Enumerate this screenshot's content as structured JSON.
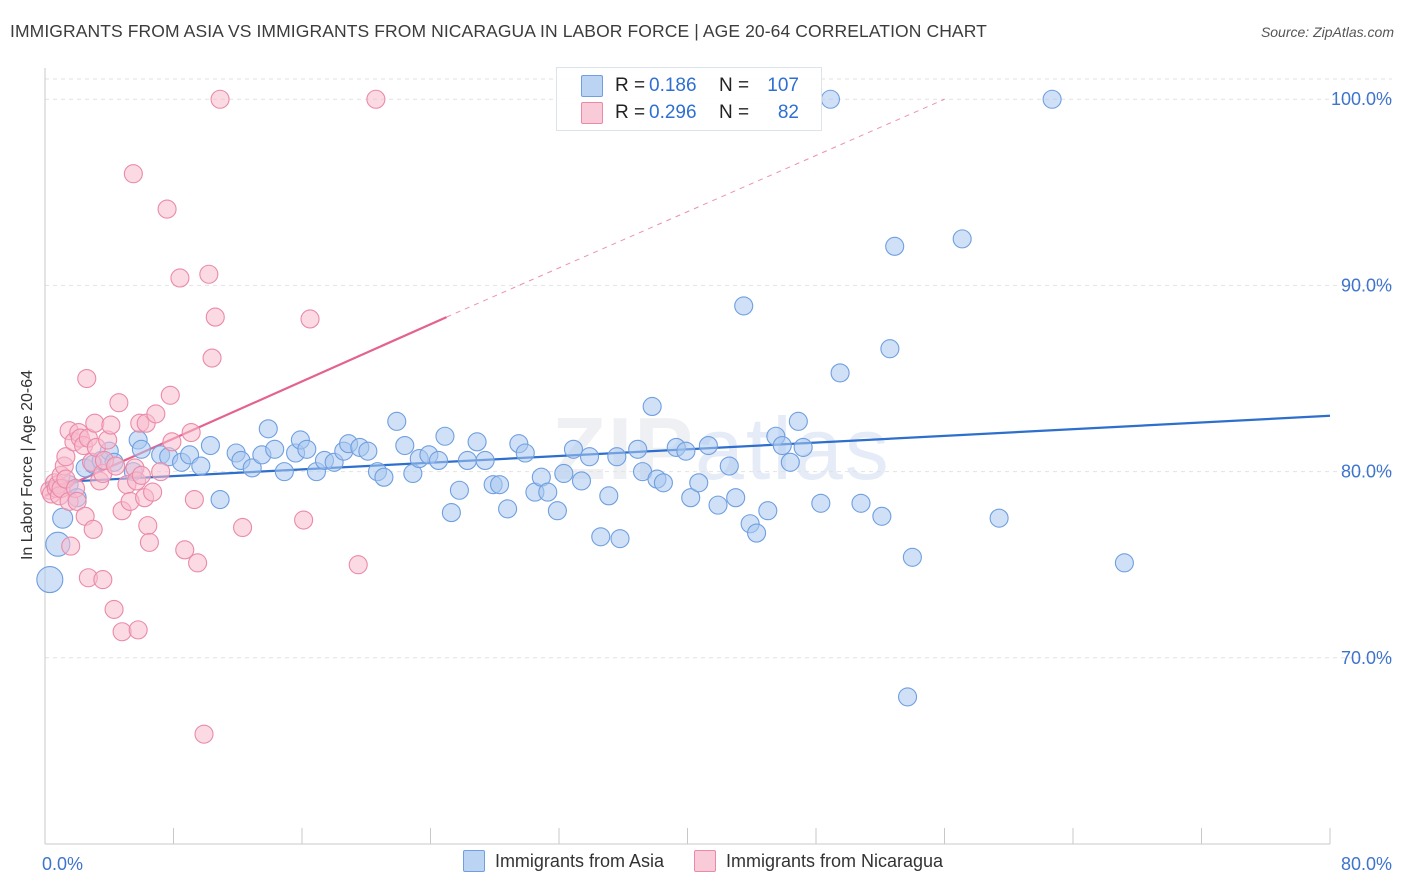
{
  "title": "IMMIGRANTS FROM ASIA VS IMMIGRANTS FROM NICARAGUA IN LABOR FORCE | AGE 20-64 CORRELATION CHART",
  "source": "Source: ZipAtlas.com",
  "watermark": {
    "zip": "ZIP",
    "atlas": "atlas"
  },
  "legend_top": {
    "row1": {
      "r_label": "R =",
      "r_value": "0.186",
      "n_label": "N =",
      "n_value": "107"
    },
    "row2": {
      "r_label": "R =",
      "r_value": "0.296",
      "n_label": "N =",
      "n_value": "82"
    }
  },
  "legend_bottom": {
    "asia": "Immigrants from Asia",
    "nicaragua": "Immigrants from Nicaragua"
  },
  "colors": {
    "asia_fill": "#a9c8f0",
    "asia_stroke": "#6f9fe0",
    "asia_line": "#2e6fcc",
    "nic_fill": "#f7bccd",
    "nic_stroke": "#ea8aa8",
    "nic_line": "#e4628e",
    "tick_label": "#3f74cc",
    "grid": "#e2e2e2"
  },
  "chart_data": {
    "type": "scatter",
    "title": "IMMIGRANTS FROM ASIA VS IMMIGRANTS FROM NICARAGUA IN LABOR FORCE | AGE 20-64 CORRELATION CHART",
    "xlabel": "",
    "ylabel": "In Labor Force | Age 20-64",
    "xlim": [
      0,
      80
    ],
    "ylim": [
      60,
      102
    ],
    "x_tick_labels": [
      "0.0%",
      "80.0%"
    ],
    "y_ticks": [
      70,
      80,
      90,
      100
    ],
    "y_tick_labels": [
      "70.0%",
      "80.0%",
      "90.0%",
      "100.0%"
    ],
    "grid": true,
    "legend_position": "top-center",
    "series": [
      {
        "name": "Immigrants from Asia",
        "r": 0.186,
        "n": 107,
        "trend": {
          "x": [
            0,
            80
          ],
          "y": [
            79.4,
            83.0
          ]
        },
        "points": [
          [
            0.3,
            74.2
          ],
          [
            0.8,
            76.1
          ],
          [
            1.1,
            77.5
          ],
          [
            1.5,
            79.3
          ],
          [
            2.0,
            78.6
          ],
          [
            2.5,
            80.2
          ],
          [
            3.0,
            80.4
          ],
          [
            3.5,
            80.6
          ],
          [
            4.0,
            81.1
          ],
          [
            4.3,
            80.5
          ],
          [
            5.5,
            80.0
          ],
          [
            5.8,
            81.7
          ],
          [
            6.0,
            81.2
          ],
          [
            7.2,
            80.9
          ],
          [
            7.7,
            80.8
          ],
          [
            8.5,
            80.5
          ],
          [
            9.0,
            80.9
          ],
          [
            9.7,
            80.3
          ],
          [
            10.3,
            81.4
          ],
          [
            10.9,
            78.5
          ],
          [
            11.9,
            81.0
          ],
          [
            12.2,
            80.6
          ],
          [
            12.9,
            80.2
          ],
          [
            13.5,
            80.9
          ],
          [
            13.9,
            82.3
          ],
          [
            14.3,
            81.2
          ],
          [
            14.9,
            80.0
          ],
          [
            15.6,
            81.0
          ],
          [
            15.9,
            81.7
          ],
          [
            16.3,
            81.2
          ],
          [
            16.9,
            80.0
          ],
          [
            17.4,
            80.6
          ],
          [
            18.0,
            80.5
          ],
          [
            18.6,
            81.1
          ],
          [
            18.9,
            81.5
          ],
          [
            19.6,
            81.3
          ],
          [
            20.1,
            81.1
          ],
          [
            20.7,
            80.0
          ],
          [
            21.1,
            79.7
          ],
          [
            21.9,
            82.7
          ],
          [
            22.4,
            81.4
          ],
          [
            22.9,
            79.9
          ],
          [
            23.3,
            80.7
          ],
          [
            23.9,
            80.9
          ],
          [
            24.5,
            80.6
          ],
          [
            24.9,
            81.9
          ],
          [
            25.3,
            77.8
          ],
          [
            25.8,
            79.0
          ],
          [
            26.3,
            80.6
          ],
          [
            26.9,
            81.6
          ],
          [
            27.4,
            80.6
          ],
          [
            27.9,
            79.3
          ],
          [
            28.3,
            79.3
          ],
          [
            28.8,
            78.0
          ],
          [
            29.5,
            81.5
          ],
          [
            29.9,
            81.0
          ],
          [
            30.5,
            78.9
          ],
          [
            30.9,
            79.7
          ],
          [
            31.3,
            78.9
          ],
          [
            31.9,
            77.9
          ],
          [
            32.3,
            79.9
          ],
          [
            32.9,
            81.2
          ],
          [
            33.4,
            79.5
          ],
          [
            33.9,
            80.8
          ],
          [
            34.6,
            76.5
          ],
          [
            35.1,
            78.7
          ],
          [
            35.6,
            80.8
          ],
          [
            35.8,
            76.4
          ],
          [
            36.9,
            81.2
          ],
          [
            37.2,
            80.0
          ],
          [
            37.8,
            83.5
          ],
          [
            38.1,
            79.6
          ],
          [
            38.5,
            79.4
          ],
          [
            39.3,
            81.3
          ],
          [
            39.9,
            81.1
          ],
          [
            40.2,
            78.6
          ],
          [
            40.7,
            79.4
          ],
          [
            41.3,
            81.4
          ],
          [
            41.9,
            78.2
          ],
          [
            42.6,
            80.3
          ],
          [
            43.0,
            78.6
          ],
          [
            43.5,
            88.9
          ],
          [
            43.9,
            77.2
          ],
          [
            44.3,
            76.7
          ],
          [
            45.0,
            77.9
          ],
          [
            45.5,
            81.9
          ],
          [
            45.9,
            81.4
          ],
          [
            46.4,
            80.5
          ],
          [
            46.9,
            82.7
          ],
          [
            47.2,
            81.3
          ],
          [
            48.3,
            78.3
          ],
          [
            48.9,
            100.0
          ],
          [
            49.5,
            85.3
          ],
          [
            50.8,
            78.3
          ],
          [
            52.1,
            77.6
          ],
          [
            52.6,
            86.6
          ],
          [
            52.9,
            92.1
          ],
          [
            53.7,
            67.9
          ],
          [
            54.0,
            75.4
          ],
          [
            57.1,
            92.5
          ],
          [
            59.4,
            77.5
          ],
          [
            62.7,
            100.0
          ],
          [
            67.2,
            75.1
          ]
        ]
      },
      {
        "name": "Immigrants from Nicaragua",
        "r": 0.296,
        "n": 82,
        "trend": {
          "x": [
            0,
            25
          ],
          "y": [
            78.7,
            88.3
          ]
        },
        "trend_extension": {
          "x": [
            25,
            56
          ],
          "y": [
            88.3,
            100.0
          ]
        },
        "points": [
          [
            0.3,
            79.0
          ],
          [
            0.4,
            78.8
          ],
          [
            0.6,
            79.4
          ],
          [
            0.7,
            79.1
          ],
          [
            0.8,
            79.3
          ],
          [
            0.9,
            78.7
          ],
          [
            1.0,
            79.8
          ],
          [
            1.0,
            79.1
          ],
          [
            1.2,
            80.3
          ],
          [
            1.3,
            80.8
          ],
          [
            1.3,
            79.6
          ],
          [
            1.5,
            82.2
          ],
          [
            1.5,
            78.4
          ],
          [
            1.6,
            76.0
          ],
          [
            1.8,
            81.6
          ],
          [
            1.9,
            79.1
          ],
          [
            2.0,
            78.4
          ],
          [
            2.1,
            82.1
          ],
          [
            2.2,
            81.8
          ],
          [
            2.4,
            81.4
          ],
          [
            2.5,
            77.6
          ],
          [
            2.6,
            85.0
          ],
          [
            2.7,
            81.8
          ],
          [
            2.7,
            74.3
          ],
          [
            2.9,
            80.5
          ],
          [
            3.0,
            76.9
          ],
          [
            3.1,
            82.6
          ],
          [
            3.2,
            81.3
          ],
          [
            3.4,
            79.5
          ],
          [
            3.6,
            74.2
          ],
          [
            3.6,
            79.9
          ],
          [
            3.7,
            80.6
          ],
          [
            3.9,
            81.7
          ],
          [
            4.1,
            82.5
          ],
          [
            4.3,
            72.6
          ],
          [
            4.4,
            80.3
          ],
          [
            4.6,
            83.7
          ],
          [
            4.8,
            71.4
          ],
          [
            4.8,
            77.9
          ],
          [
            5.1,
            79.3
          ],
          [
            5.3,
            78.4
          ],
          [
            5.5,
            96.0
          ],
          [
            5.6,
            80.2
          ],
          [
            5.7,
            79.5
          ],
          [
            5.8,
            71.5
          ],
          [
            5.9,
            82.6
          ],
          [
            6.0,
            79.8
          ],
          [
            6.2,
            78.6
          ],
          [
            6.3,
            82.6
          ],
          [
            6.4,
            77.1
          ],
          [
            6.5,
            76.2
          ],
          [
            6.7,
            78.9
          ],
          [
            6.9,
            83.1
          ],
          [
            7.2,
            80.0
          ],
          [
            7.6,
            94.1
          ],
          [
            7.8,
            84.1
          ],
          [
            7.9,
            81.6
          ],
          [
            8.4,
            90.4
          ],
          [
            8.7,
            75.8
          ],
          [
            9.1,
            82.1
          ],
          [
            9.3,
            78.5
          ],
          [
            9.5,
            75.1
          ],
          [
            9.9,
            65.9
          ],
          [
            10.2,
            90.6
          ],
          [
            10.4,
            86.1
          ],
          [
            10.6,
            88.3
          ],
          [
            10.9,
            100.0
          ],
          [
            12.3,
            77.0
          ],
          [
            16.1,
            77.4
          ],
          [
            16.5,
            88.2
          ],
          [
            19.5,
            75.0
          ],
          [
            20.6,
            100.0
          ]
        ]
      }
    ]
  }
}
